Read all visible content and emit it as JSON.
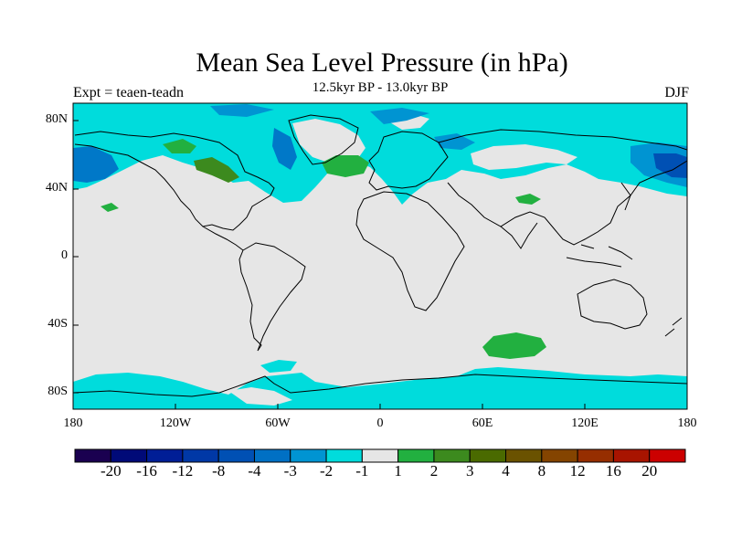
{
  "title": "Mean Sea Level Pressure (in hPa)",
  "subtitle": "12.5kyr BP - 13.0kyr BP",
  "left_label": "Expt = teaen-teadn",
  "right_label": "DJF",
  "lat_ticks": [
    "80N",
    "40N",
    "0",
    "40S",
    "80S"
  ],
  "lon_ticks": [
    "180",
    "120W",
    "60W",
    "0",
    "60E",
    "120E",
    "180"
  ],
  "colors": {
    "background": "#e6e6e6",
    "cyan": "#00dcdc",
    "blue_light": "#00a6d6",
    "blue_mid": "#0078c8",
    "blue_dark": "#0048a8",
    "green": "#22b040",
    "green_dark": "#3c7a1e",
    "coast": "#000000"
  },
  "colorbar": {
    "colors": [
      "#1a0050",
      "#000a78",
      "#001e96",
      "#0038a6",
      "#0050b4",
      "#0070c4",
      "#0094d2",
      "#00dcdc",
      "#e6e6e6",
      "#22b040",
      "#3c8a1e",
      "#4a6a00",
      "#6a5200",
      "#844400",
      "#962e00",
      "#a81400",
      "#cc0000"
    ],
    "labels": [
      "-20",
      "-16",
      "-12",
      "-8",
      "-4",
      "-3",
      "-2",
      "-1",
      "1",
      "2",
      "3",
      "4",
      "8",
      "12",
      "16",
      "20"
    ]
  }
}
